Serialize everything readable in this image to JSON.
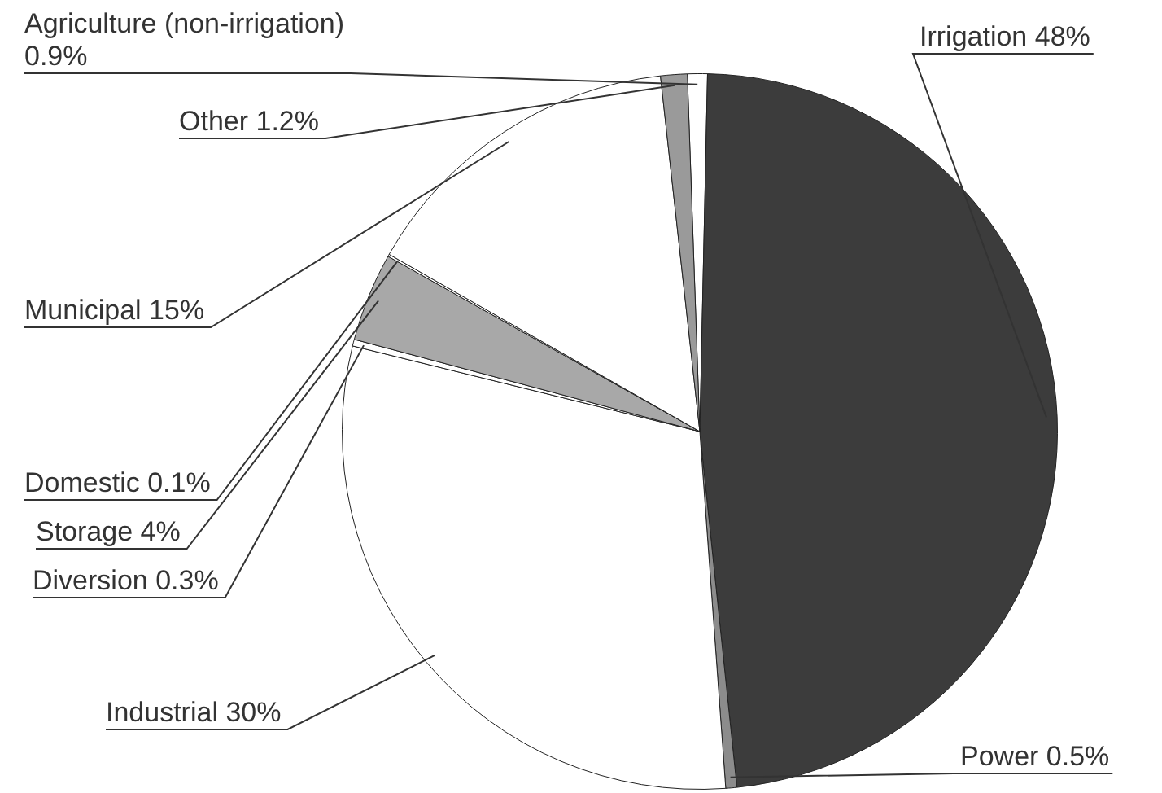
{
  "chart_data": {
    "type": "pie",
    "categories": [
      "Agriculture (non-irrigation)",
      "Irrigation",
      "Power",
      "Industrial",
      "Diversion",
      "Storage",
      "Domestic",
      "Municipal",
      "Other"
    ],
    "values": [
      0.9,
      48,
      0.5,
      30,
      0.3,
      4,
      0.1,
      15,
      1.2
    ],
    "value_labels": [
      "0.9%",
      "48%",
      "0.5%",
      "30%",
      "0.3%",
      "4%",
      "0.1%",
      "15%",
      "1.2%"
    ],
    "colors": [
      "#ffffff",
      "#3c3c3c",
      "#8c8c8c",
      "#ffffff",
      "#ffffff",
      "#a8a8a8",
      "#ffffff",
      "#ffffff",
      "#9a9a9a"
    ],
    "legend": false
  }
}
